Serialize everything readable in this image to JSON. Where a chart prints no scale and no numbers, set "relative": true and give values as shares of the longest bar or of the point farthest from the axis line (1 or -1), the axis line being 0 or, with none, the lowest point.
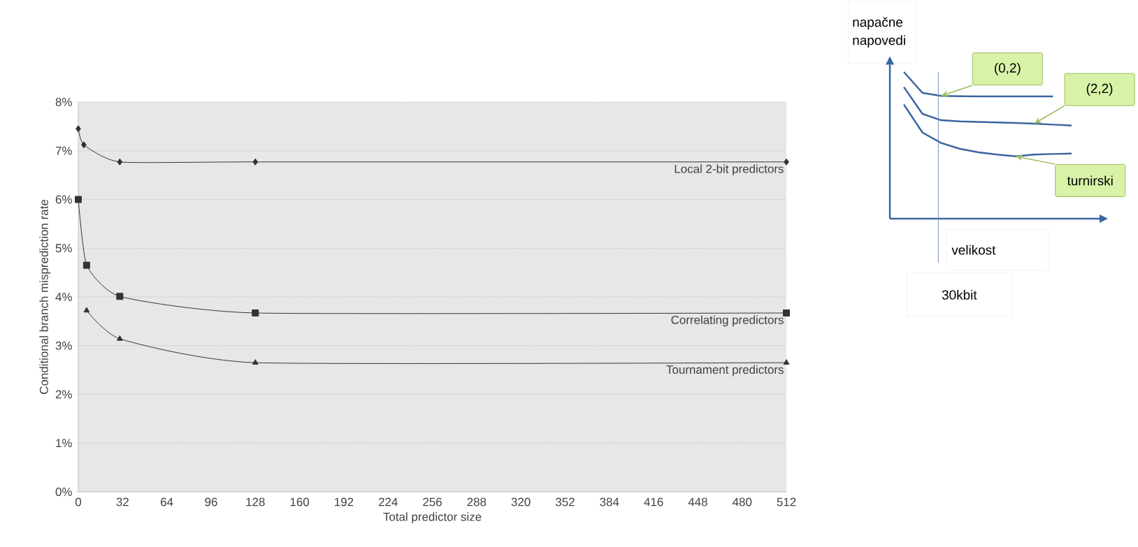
{
  "chart_data": [
    {
      "type": "line",
      "xlabel": "Total predictor size",
      "ylabel": "Conditional branch misprediction rate",
      "xlim": [
        0,
        512
      ],
      "xticks": [
        0,
        32,
        64,
        96,
        128,
        160,
        192,
        224,
        256,
        288,
        320,
        352,
        384,
        416,
        448,
        480,
        512
      ],
      "ylim": [
        0,
        8
      ],
      "yticks": [
        {
          "value": 0,
          "label": "0%"
        },
        {
          "value": 1,
          "label": "1%"
        },
        {
          "value": 2,
          "label": "2%"
        },
        {
          "value": 3,
          "label": "3%"
        },
        {
          "value": 4,
          "label": "4%"
        },
        {
          "value": 5,
          "label": "5%"
        },
        {
          "value": 6,
          "label": "6%"
        },
        {
          "value": 7,
          "label": "7%"
        },
        {
          "value": 8,
          "label": "8%"
        }
      ],
      "grid": "y",
      "legend": false,
      "line_style": "solid",
      "series": [
        {
          "name": "Local 2-bit predictors",
          "color": "#333333",
          "marker": "diamond",
          "x": [
            0,
            4,
            30,
            128,
            512
          ],
          "values": [
            7.45,
            7.12,
            6.77,
            6.77,
            6.77
          ]
        },
        {
          "name": "Correlating predictors",
          "color": "#333333",
          "marker": "square",
          "x": [
            0,
            6,
            30,
            128,
            512
          ],
          "values": [
            6.0,
            4.65,
            4.01,
            3.67,
            3.67
          ]
        },
        {
          "name": "Tournament predictors",
          "color": "#333333",
          "marker": "triangle",
          "x": [
            6,
            30,
            128,
            512
          ],
          "values": [
            3.72,
            3.14,
            2.65,
            2.65
          ]
        }
      ]
    },
    {
      "type": "line",
      "relative": true,
      "xlabel": "velikost",
      "ylabel": "napačne napovedi",
      "categories": [
        null,
        null,
        null,
        null,
        null,
        null,
        null,
        null,
        null,
        null
      ],
      "marker": "none",
      "legend": false,
      "annotations": [
        "30kbit"
      ],
      "series": [
        {
          "name": "(0,2)",
          "color": "#3a65a0",
          "values": [
            1.0,
            0.857,
            0.837,
            0.835,
            0.833,
            0.833,
            0.833,
            0.833,
            0.833,
            null
          ]
        },
        {
          "name": "(2,2)",
          "color": "#3a65a0",
          "values": [
            0.897,
            0.714,
            0.671,
            0.663,
            0.659,
            0.656,
            0.652,
            0.648,
            0.641,
            0.635
          ]
        },
        {
          "name": "turnirski",
          "color": "#3a65a0",
          "values": [
            0.778,
            0.587,
            0.516,
            0.476,
            0.452,
            0.437,
            0.425,
            0.437,
            0.441,
            0.444
          ]
        }
      ]
    }
  ]
}
